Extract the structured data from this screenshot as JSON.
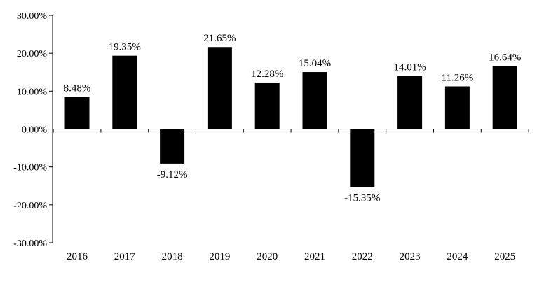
{
  "chart_data": {
    "type": "bar",
    "title": "",
    "xlabel": "",
    "ylabel": "",
    "categories": [
      "2016",
      "2017",
      "2018",
      "2019",
      "2020",
      "2021",
      "2022",
      "2023",
      "2024",
      "2025"
    ],
    "values": [
      8.48,
      19.35,
      -9.12,
      21.65,
      12.28,
      15.04,
      -15.35,
      14.01,
      11.26,
      16.64
    ],
    "data_labels": [
      "8.48%",
      "19.35%",
      "-9.12%",
      "21.65%",
      "12.28%",
      "15.04%",
      "-15.35%",
      "14.01%",
      "11.26%",
      "16.64%"
    ],
    "ylim": [
      -30,
      30
    ],
    "yticks": [
      30,
      20,
      10,
      0,
      -10,
      -20,
      -30
    ],
    "ytick_labels": [
      "30.00%",
      "20.00%",
      "10.00%",
      "0.00%",
      "-10.00%",
      "-20.00%",
      "-30.00%"
    ],
    "grid": false,
    "legend": "none",
    "bar_color": "#000000"
  }
}
